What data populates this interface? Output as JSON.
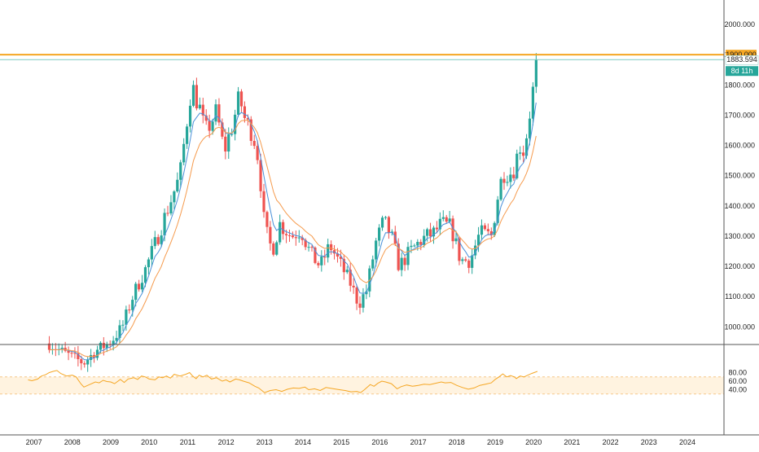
{
  "chart_data": [
    {
      "type": "candlestick",
      "instrument": "",
      "timeframe": "1M",
      "ylim": [
        930,
        2085
      ],
      "y_ticks": [
        "2000.000",
        "1900.000",
        "1800.000",
        "1700.000",
        "1600.000",
        "1500.000",
        "1400.000",
        "1300.000",
        "1200.000",
        "1100.000",
        "1000.000"
      ],
      "x_range": [
        2006.9,
        2024.95
      ],
      "x_ticks": [
        "2007",
        "2008",
        "2009",
        "2010",
        "2011",
        "2012",
        "2013",
        "2014",
        "2015",
        "2016",
        "2017",
        "2018",
        "2019",
        "2020",
        "2021",
        "2022",
        "2023",
        "2024"
      ],
      "horizontal_line": {
        "value": 1900,
        "label": "1900.000",
        "color": "#f5a623"
      },
      "last_price": {
        "value": 1883.594,
        "label": "1883.594",
        "countdown": "8d 11h",
        "color": "#26a69a"
      },
      "candle_colors": {
        "up": "#26a69a",
        "down": "#ef5350"
      },
      "series": [
        {
          "name": "",
          "color": "#4a90d9",
          "type": "moving-average-fast"
        },
        {
          "name": "",
          "color": "#f59a4c",
          "type": "moving-average-slow"
        }
      ],
      "anchors": [
        [
          2007.9,
          945
        ],
        [
          2008.2,
          920
        ],
        [
          2008.8,
          880
        ],
        [
          2009.1,
          920
        ],
        [
          2009.5,
          950
        ],
        [
          2009.8,
          1000
        ],
        [
          2010.1,
          1110
        ],
        [
          2010.4,
          1190
        ],
        [
          2010.7,
          1290
        ],
        [
          2010.95,
          1380
        ],
        [
          2011.3,
          1500
        ],
        [
          2011.6,
          1800
        ],
        [
          2011.8,
          1730
        ],
        [
          2011.95,
          1640
        ],
        [
          2012.25,
          1710
        ],
        [
          2012.45,
          1580
        ],
        [
          2012.65,
          1660
        ],
        [
          2012.85,
          1760
        ],
        [
          2013.0,
          1680
        ],
        [
          2013.2,
          1640
        ],
        [
          2013.35,
          1550
        ],
        [
          2013.5,
          1330
        ],
        [
          2013.7,
          1250
        ],
        [
          2013.9,
          1340
        ],
        [
          2014.2,
          1300
        ],
        [
          2014.45,
          1320
        ],
        [
          2014.7,
          1240
        ],
        [
          2014.95,
          1200
        ],
        [
          2015.2,
          1270
        ],
        [
          2015.5,
          1200
        ],
        [
          2015.75,
          1140
        ],
        [
          2015.95,
          1075
        ],
        [
          2016.15,
          1120
        ],
        [
          2016.4,
          1280
        ],
        [
          2016.6,
          1350
        ],
        [
          2016.8,
          1300
        ],
        [
          2017.0,
          1200
        ],
        [
          2017.3,
          1250
        ],
        [
          2017.6,
          1290
        ],
        [
          2017.9,
          1310
        ],
        [
          2018.1,
          1340
        ],
        [
          2018.35,
          1330
        ],
        [
          2018.6,
          1220
        ],
        [
          2018.85,
          1220
        ],
        [
          2019.1,
          1310
        ],
        [
          2019.4,
          1300
        ],
        [
          2019.55,
          1420
        ],
        [
          2019.7,
          1510
        ],
        [
          2019.95,
          1510
        ],
        [
          2020.15,
          1600
        ],
        [
          2020.25,
          1580
        ],
        [
          2020.45,
          1750
        ],
        [
          2020.6,
          1883.594
        ]
      ]
    },
    {
      "type": "line",
      "indicator": "oscillator",
      "ylim": [
        26,
        89
      ],
      "y_ticks": [
        "80.00",
        "60.00",
        "40.00"
      ],
      "band": [
        30,
        70
      ],
      "series_color": "#f5a623",
      "points": [
        [
          2007.35,
          63
        ],
        [
          2007.45,
          61
        ],
        [
          2007.6,
          65
        ],
        [
          2007.7,
          72
        ],
        [
          2007.8,
          75
        ],
        [
          2007.9,
          80
        ],
        [
          2008.0,
          83
        ],
        [
          2008.1,
          85
        ],
        [
          2008.2,
          78
        ],
        [
          2008.35,
          72
        ],
        [
          2008.5,
          74
        ],
        [
          2008.6,
          70
        ],
        [
          2008.72,
          54
        ],
        [
          2008.8,
          46
        ],
        [
          2008.95,
          52
        ],
        [
          2009.1,
          58
        ],
        [
          2009.2,
          56
        ],
        [
          2009.3,
          62
        ],
        [
          2009.4,
          59
        ],
        [
          2009.5,
          58
        ],
        [
          2009.6,
          54
        ],
        [
          2009.75,
          64
        ],
        [
          2009.85,
          57
        ],
        [
          2009.95,
          65
        ],
        [
          2010.1,
          68
        ],
        [
          2010.2,
          64
        ],
        [
          2010.3,
          72
        ],
        [
          2010.4,
          70
        ],
        [
          2010.5,
          65
        ],
        [
          2010.65,
          63
        ],
        [
          2010.75,
          70
        ],
        [
          2010.85,
          68
        ],
        [
          2010.95,
          72
        ],
        [
          2011.05,
          67
        ],
        [
          2011.15,
          76
        ],
        [
          2011.3,
          72
        ],
        [
          2011.45,
          76
        ],
        [
          2011.55,
          80
        ],
        [
          2011.63,
          72
        ],
        [
          2011.72,
          66
        ],
        [
          2011.8,
          74
        ],
        [
          2011.9,
          70
        ],
        [
          2012.0,
          74
        ],
        [
          2012.12,
          65
        ],
        [
          2012.25,
          68
        ],
        [
          2012.4,
          60
        ],
        [
          2012.5,
          63
        ],
        [
          2012.6,
          58
        ],
        [
          2012.75,
          65
        ],
        [
          2012.85,
          63
        ],
        [
          2012.95,
          60
        ],
        [
          2013.1,
          56
        ],
        [
          2013.25,
          48
        ],
        [
          2013.35,
          44
        ],
        [
          2013.5,
          33
        ],
        [
          2013.65,
          38
        ],
        [
          2013.8,
          40
        ],
        [
          2013.95,
          36
        ],
        [
          2014.1,
          41
        ],
        [
          2014.25,
          44
        ],
        [
          2014.4,
          43
        ],
        [
          2014.55,
          46
        ],
        [
          2014.65,
          40
        ],
        [
          2014.8,
          42
        ],
        [
          2014.95,
          38
        ],
        [
          2015.1,
          45
        ],
        [
          2015.3,
          42
        ],
        [
          2015.45,
          40
        ],
        [
          2015.6,
          38
        ],
        [
          2015.75,
          35
        ],
        [
          2015.9,
          36
        ],
        [
          2016.0,
          33
        ],
        [
          2016.1,
          40
        ],
        [
          2016.25,
          52
        ],
        [
          2016.35,
          48
        ],
        [
          2016.45,
          55
        ],
        [
          2016.55,
          60
        ],
        [
          2016.65,
          58
        ],
        [
          2016.8,
          54
        ],
        [
          2016.95,
          42
        ],
        [
          2017.05,
          47
        ],
        [
          2017.2,
          51
        ],
        [
          2017.35,
          48
        ],
        [
          2017.5,
          50
        ],
        [
          2017.65,
          53
        ],
        [
          2017.8,
          52
        ],
        [
          2017.95,
          55
        ],
        [
          2018.1,
          58
        ],
        [
          2018.2,
          56
        ],
        [
          2018.35,
          57
        ],
        [
          2018.5,
          50
        ],
        [
          2018.65,
          45
        ],
        [
          2018.8,
          41
        ],
        [
          2018.95,
          44
        ],
        [
          2019.1,
          50
        ],
        [
          2019.25,
          53
        ],
        [
          2019.4,
          56
        ],
        [
          2019.5,
          64
        ],
        [
          2019.6,
          70
        ],
        [
          2019.7,
          77
        ],
        [
          2019.8,
          70
        ],
        [
          2019.9,
          73
        ],
        [
          2020.0,
          70
        ],
        [
          2020.05,
          66
        ],
        [
          2020.15,
          72
        ],
        [
          2020.25,
          70
        ],
        [
          2020.35,
          74
        ],
        [
          2020.45,
          78
        ],
        [
          2020.6,
          83
        ]
      ]
    }
  ]
}
